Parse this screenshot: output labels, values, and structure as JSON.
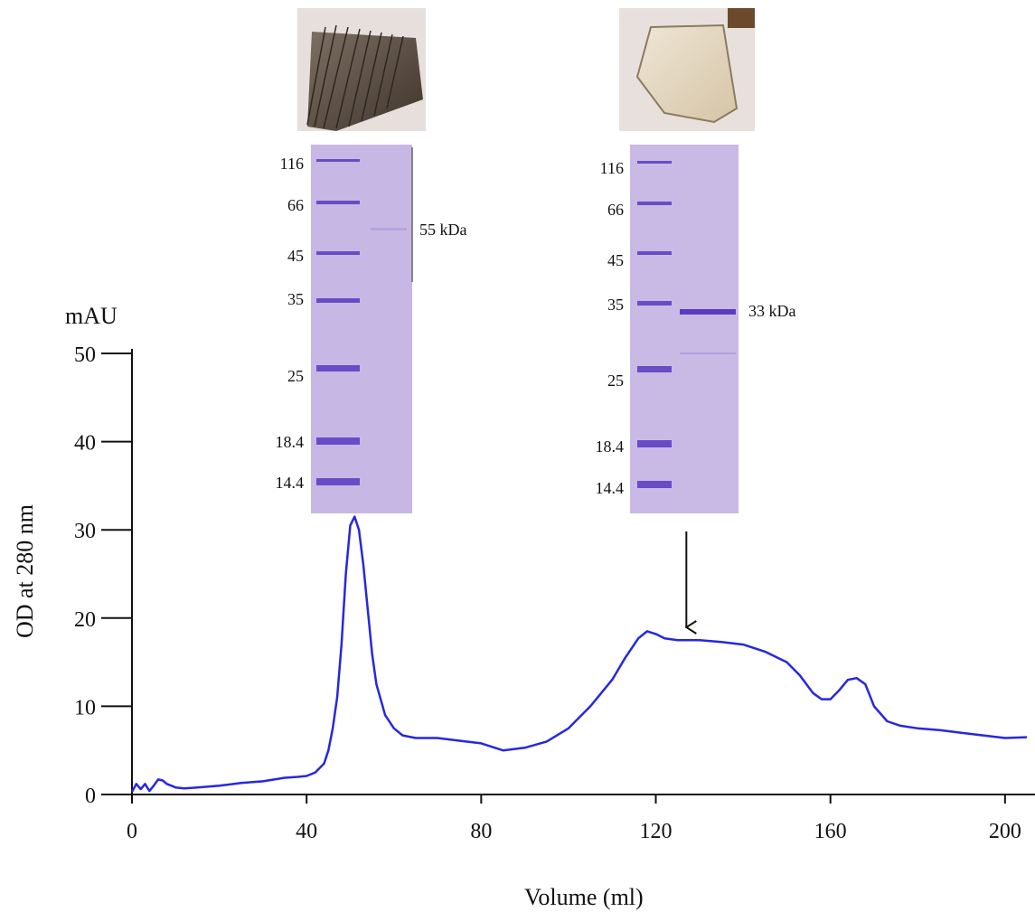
{
  "chart_data": {
    "type": "line",
    "xlabel": "Volume  (ml)",
    "ylabel": "OD at 280 nm",
    "y_units": "mAU",
    "xlim": [
      0,
      205
    ],
    "ylim": [
      0,
      50
    ],
    "x_ticks": [
      0,
      40,
      80,
      120,
      160,
      200
    ],
    "y_ticks": [
      0,
      10,
      20,
      30,
      40,
      50
    ],
    "grid": false,
    "line_color": "#2727e0",
    "series": [
      {
        "x": [
          0,
          1,
          2,
          3,
          4,
          5,
          6,
          7,
          8,
          10,
          12,
          15,
          20,
          25,
          30,
          35,
          38,
          40,
          42,
          44,
          45,
          46,
          47,
          48,
          49,
          50,
          51,
          52,
          53,
          54,
          55,
          56,
          58,
          60,
          62,
          65,
          70,
          75,
          80,
          85,
          90,
          95,
          100,
          105,
          110,
          113,
          116,
          118,
          120,
          122,
          125,
          130,
          135,
          140,
          145,
          150,
          153,
          156,
          158,
          160,
          162,
          164,
          166,
          168,
          170,
          173,
          176,
          180,
          185,
          190,
          195,
          200,
          205
        ],
        "y": [
          0.3,
          1.2,
          0.6,
          1.2,
          0.4,
          1.0,
          1.7,
          1.6,
          1.2,
          0.8,
          0.7,
          0.8,
          1.0,
          1.3,
          1.5,
          1.9,
          2.0,
          2.1,
          2.5,
          3.5,
          5.0,
          7.5,
          11.0,
          17.0,
          25.0,
          30.5,
          31.5,
          30.0,
          26.0,
          21.0,
          16.0,
          12.5,
          9.0,
          7.5,
          6.7,
          6.4,
          6.4,
          6.1,
          5.8,
          5.0,
          5.3,
          6.0,
          7.5,
          10.0,
          13.0,
          15.5,
          17.7,
          18.5,
          18.2,
          17.7,
          17.5,
          17.5,
          17.3,
          17.0,
          16.2,
          15.0,
          13.5,
          11.5,
          10.8,
          10.8,
          11.8,
          13.0,
          13.2,
          12.5,
          10.0,
          8.3,
          7.8,
          7.5,
          7.3,
          7.0,
          6.7,
          6.4,
          6.5
        ]
      }
    ],
    "annotations": [
      {
        "type": "inset-gel",
        "at_x": 52,
        "markers": [
          "116",
          "66",
          "45",
          "35",
          "25",
          "18.4",
          "14.4"
        ],
        "band_label": "55 kDa"
      },
      {
        "type": "inset-gel",
        "at_x": 127,
        "markers": [
          "116",
          "66",
          "45",
          "35",
          "25",
          "18.4",
          "14.4"
        ],
        "band_label": "33 kDa",
        "arrow_to_x": 127
      }
    ]
  }
}
